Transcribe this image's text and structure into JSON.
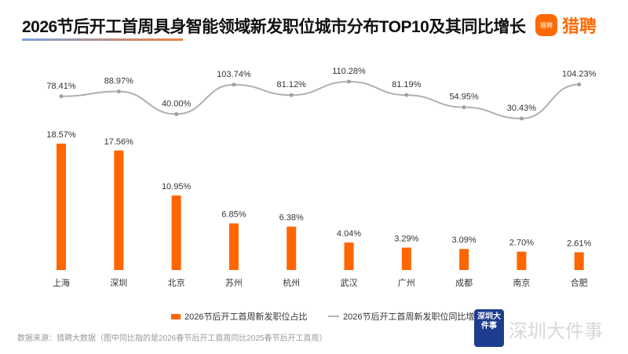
{
  "header": {
    "title": "2026节后开工首周具身智能领域新发职位城市分布TOP10及其同比增长",
    "logo_icon_text": "猎聘",
    "logo_text": "猎聘"
  },
  "chart_data": {
    "type": "bar+line",
    "title": "2026节后开工首周具身智能领域新发职位城市分布TOP10及其同比增长",
    "categories": [
      "上海",
      "深圳",
      "北京",
      "苏州",
      "杭州",
      "武汉",
      "广州",
      "成都",
      "南京",
      "合肥"
    ],
    "series": [
      {
        "name": "2026节后开工首周新发职位占比",
        "type": "bar",
        "unit": "%",
        "values": [
          18.57,
          17.56,
          10.95,
          6.85,
          6.38,
          4.04,
          3.29,
          3.09,
          2.7,
          2.61
        ],
        "color": "#ff6600"
      },
      {
        "name": "2026节后开工首周新发职位同比增长",
        "type": "line",
        "unit": "%",
        "values": [
          78.41,
          88.97,
          40.0,
          103.74,
          81.12,
          110.28,
          81.19,
          54.95,
          30.43,
          104.23
        ],
        "color": "#b0b0b0"
      }
    ],
    "legend": "bottom"
  },
  "footer": {
    "source": "数据来源：猎聘大数据（图中同比指的是2026春节后开工首周同比2025春节后开工首周）",
    "watermark_badge": "深圳大件事",
    "watermark_text": "深圳大件事"
  }
}
